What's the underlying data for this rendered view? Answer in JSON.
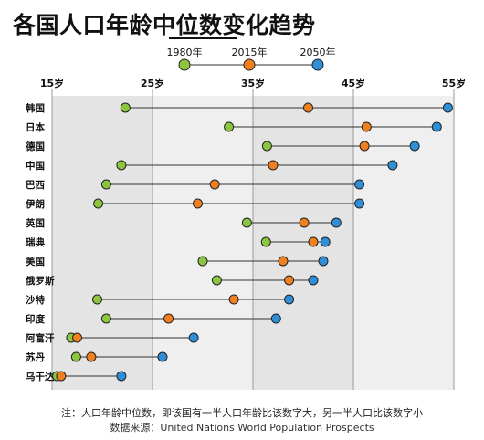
{
  "title": "各国人口年龄中位数变化趋势",
  "legend": [
    {
      "label": "1980年",
      "color": "#8cc63f"
    },
    {
      "label": "2015年",
      "color": "#f07f1f"
    },
    {
      "label": "2050年",
      "color": "#2f8fd6"
    }
  ],
  "notes": {
    "footnote": "注：人口年龄中位数，即该国有一半人口年龄比该数字大，另一半人口比该数字小",
    "source": "数据来源：United Nations World Population Prospects"
  },
  "chart_data": {
    "type": "dot-range",
    "xlim": [
      15,
      55
    ],
    "xticks": [
      15,
      25,
      35,
      45,
      55
    ],
    "tick_labels": [
      "15岁",
      "25岁",
      "35岁",
      "45岁",
      "55岁"
    ],
    "categories": [
      "韩国",
      "日本",
      "德国",
      "中国",
      "巴西",
      "伊朗",
      "英国",
      "瑞典",
      "美国",
      "俄罗斯",
      "沙特",
      "印度",
      "阿富汗",
      "苏丹",
      "乌干达"
    ],
    "series": [
      {
        "name": "1980年",
        "values": [
          22.3,
          32.6,
          36.4,
          21.9,
          20.4,
          19.6,
          34.4,
          36.3,
          30.0,
          31.4,
          19.5,
          20.4,
          16.9,
          17.4,
          15.5
        ]
      },
      {
        "name": "2015年",
        "values": [
          40.5,
          46.3,
          46.1,
          37.0,
          31.2,
          29.5,
          40.1,
          41.0,
          38.0,
          38.6,
          33.1,
          26.6,
          17.5,
          18.9,
          15.9
        ]
      },
      {
        "name": "2050年",
        "values": [
          54.4,
          53.3,
          51.1,
          48.9,
          45.6,
          45.6,
          43.3,
          42.2,
          42.0,
          41.0,
          38.6,
          37.3,
          29.1,
          26.0,
          21.9
        ]
      }
    ],
    "colors": [
      "#8cc63f",
      "#f07f1f",
      "#2f8fd6"
    ],
    "grid": true
  }
}
